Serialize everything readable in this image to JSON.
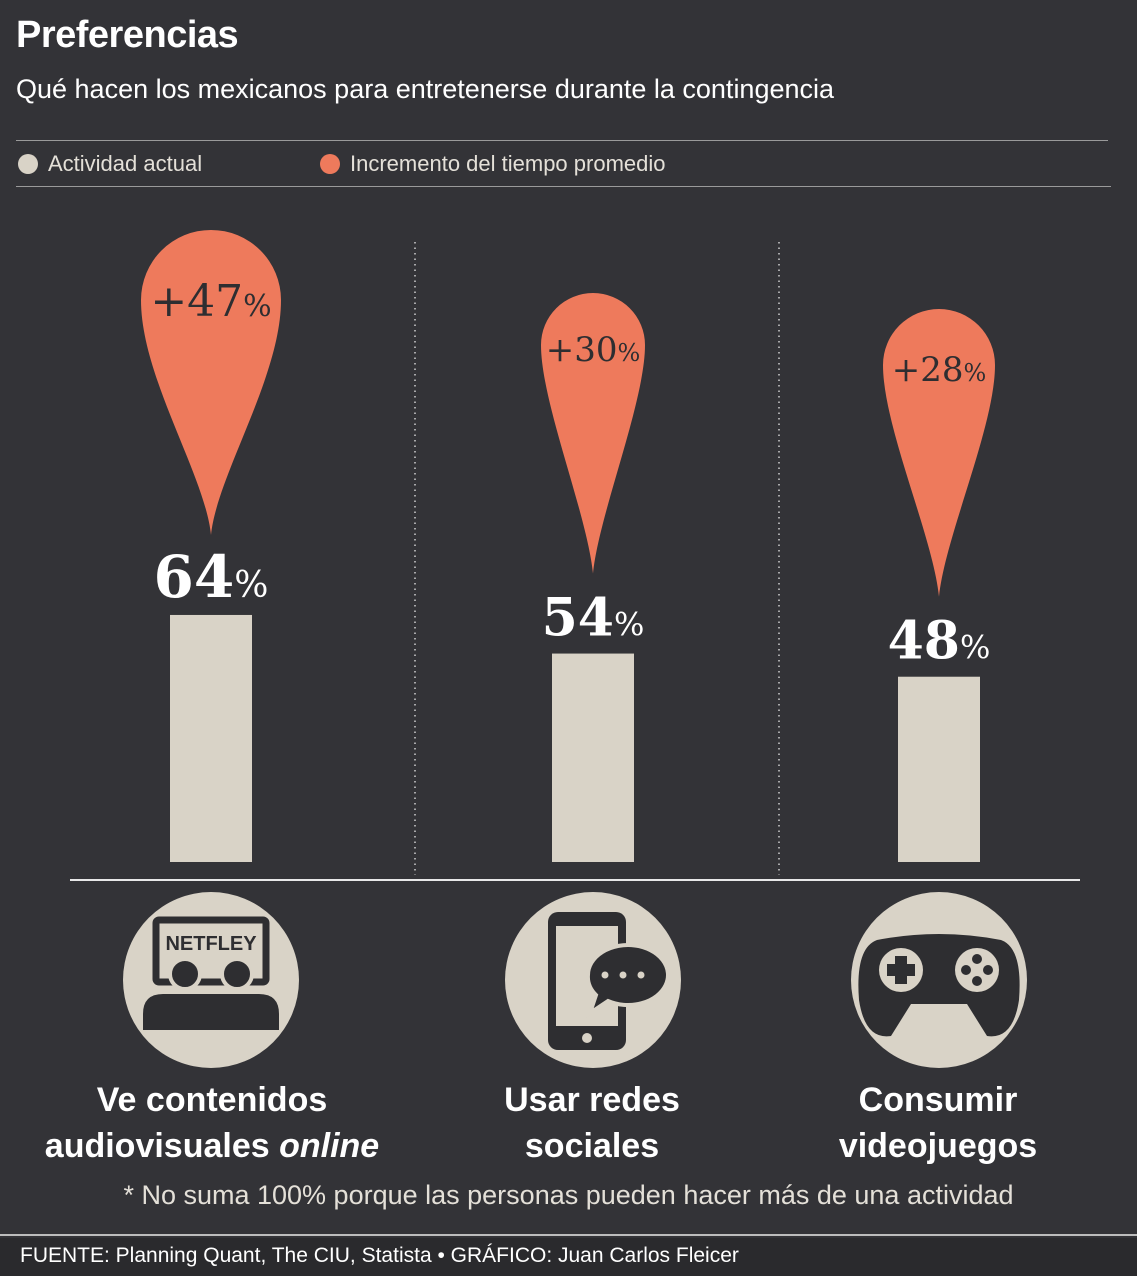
{
  "header": {
    "title": "Preferencias",
    "subtitle": "Qué hacen los mexicanos para entretenerse durante la contingencia"
  },
  "legend": [
    {
      "label": "Actividad actual",
      "color": "#d9d3c7"
    },
    {
      "label": "Incremento del tiempo promedio",
      "color": "#ee7a5c"
    }
  ],
  "chart_data": {
    "type": "bar",
    "categories": [
      {
        "line1": "Ve contenidos",
        "line2": "audiovisuales",
        "line2_italic": "online"
      },
      {
        "line1": "Usar redes",
        "line2": "sociales",
        "line2_italic": ""
      },
      {
        "line1": "Consumir",
        "line2": "videojuegos",
        "line2_italic": ""
      }
    ],
    "series": [
      {
        "name": "Actividad actual",
        "values": [
          64,
          54,
          48
        ],
        "labels": [
          "64",
          "54",
          "48"
        ],
        "color": "#d9d3c7"
      },
      {
        "name": "Incremento del tiempo promedio",
        "values": [
          47,
          30,
          28
        ],
        "labels": [
          "+47",
          "+30",
          "+28"
        ],
        "color": "#ee7a5c"
      }
    ],
    "unit": "%"
  },
  "icons": [
    {
      "name": "tv-viewers-icon",
      "screen_text": "NETFLEY"
    },
    {
      "name": "smartphone-chat-icon"
    },
    {
      "name": "gamepad-icon"
    }
  ],
  "note": "* No suma 100% porque las personas pueden hacer más de una actividad",
  "footer": "FUENTE: Planning Quant, The CIU, Statista • GRÁFICO: Juan Carlos Fleicer"
}
